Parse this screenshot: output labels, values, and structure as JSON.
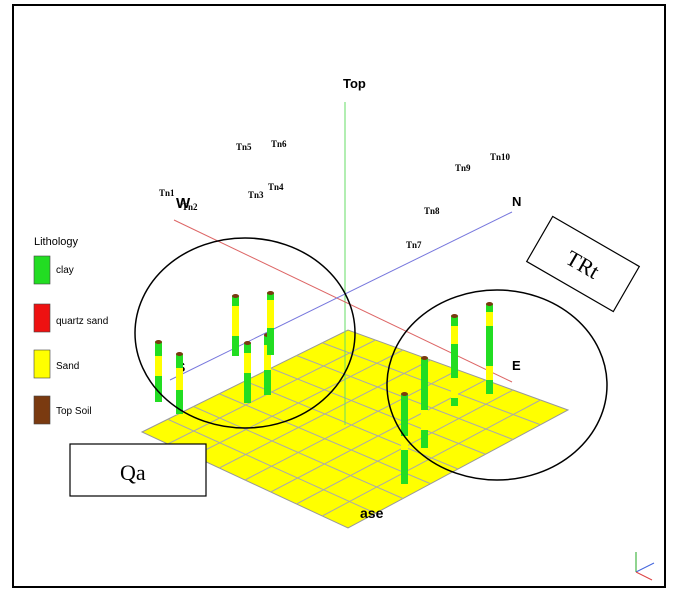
{
  "axes": {
    "top": "Top",
    "north": "N",
    "west": "W",
    "south": "S",
    "east": "E",
    "base": "ase"
  },
  "legend": {
    "title": "Lithology",
    "items": [
      {
        "label": "clay",
        "color": "#22dd22"
      },
      {
        "label": "quartz sand",
        "color": "#ee1111"
      },
      {
        "label": "Sand",
        "color": "#ffff00"
      },
      {
        "label": "Top Soil",
        "color": "#7a3a10"
      }
    ]
  },
  "borehole_labels": [
    "Tn1",
    "Tn2",
    "Tn3",
    "Tn4",
    "Tn5",
    "Tn6",
    "Tn7",
    "Tn8",
    "Tn9",
    "Tn10"
  ],
  "formations": {
    "left": "Qa",
    "right": "TRt"
  },
  "colors": {
    "grid_fill": "#ffff00",
    "grid_line": "#999999",
    "axis_red": "#dd6666",
    "axis_blue": "#6666dd",
    "axis_green": "#66dd66",
    "clay": "#22dd22",
    "sand": "#ffff00",
    "top_soil": "#7a3a10"
  }
}
